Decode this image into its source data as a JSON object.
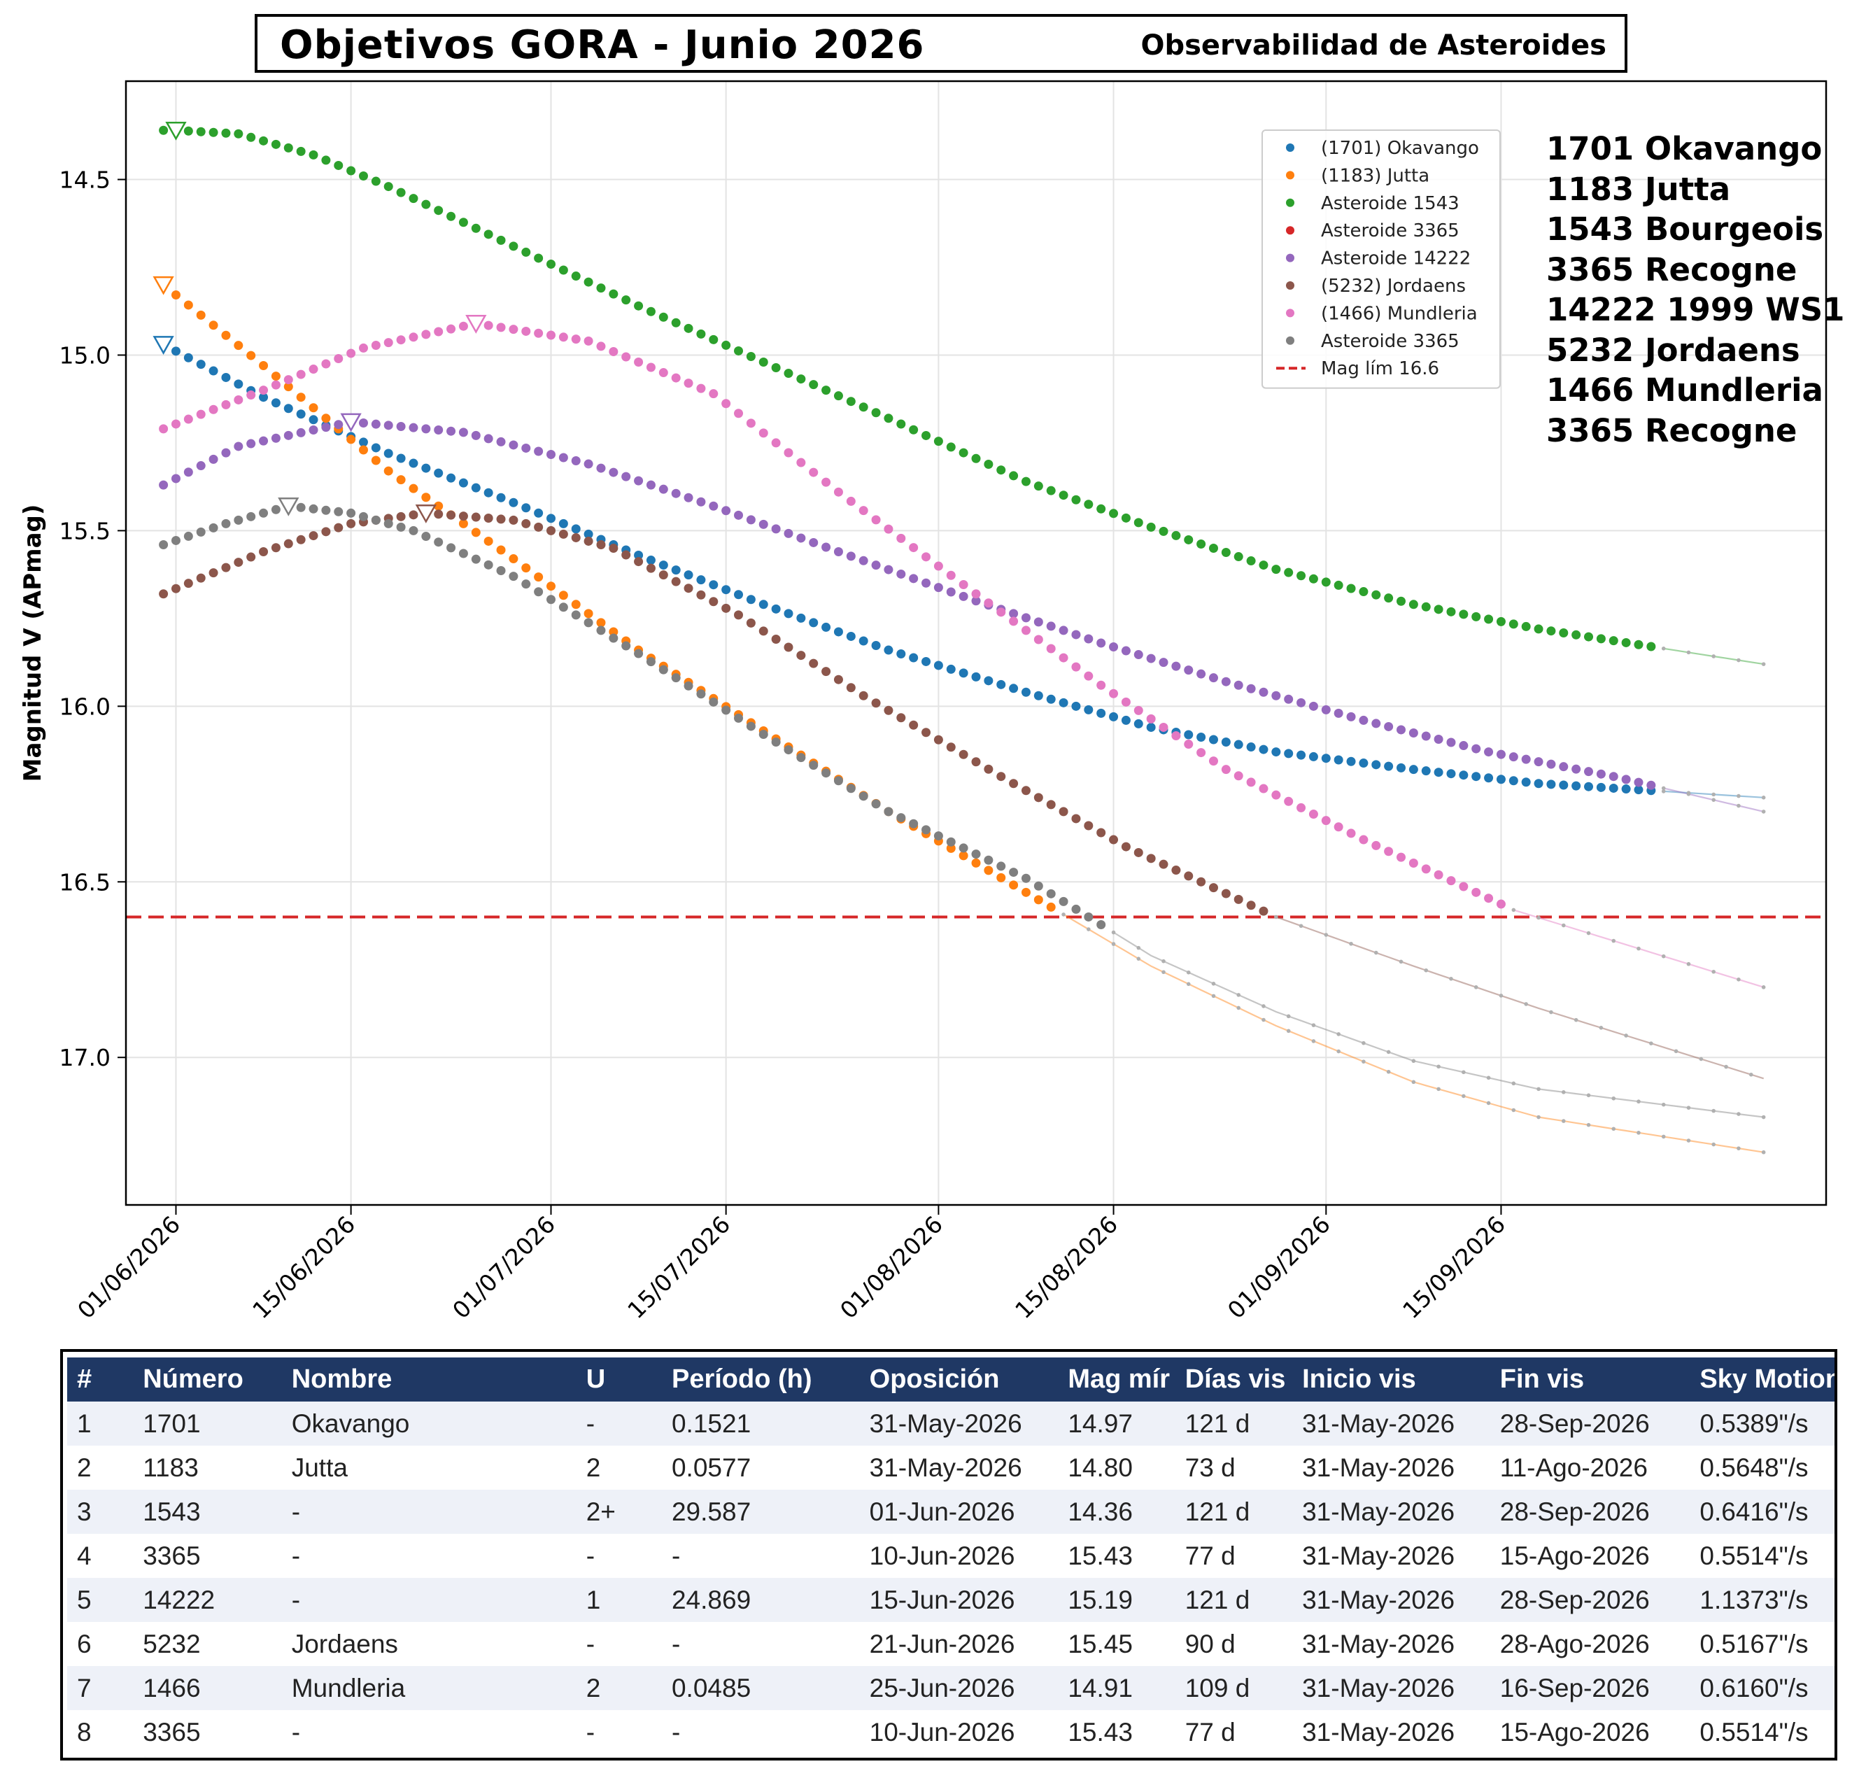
{
  "header": {
    "title": "Objetivos GORA - Junio 2026",
    "subtitle": "Observabilidad de Asteroides"
  },
  "side_list": [
    "1701 Okavango",
    "1183 Jutta",
    "1543 Bourgeois",
    "3365 Recogne",
    "14222 1999 WS1",
    "5232 Jordaens",
    "1466 Mundleria",
    "3365 Recogne"
  ],
  "chart_data": {
    "type": "scatter",
    "title": "",
    "xlabel": "",
    "ylabel": "Magnitud V (APmag)",
    "x_range": [
      "2026-05-28",
      "2026-10-11"
    ],
    "x_ticks": [
      "01/06/2026",
      "15/06/2026",
      "01/07/2026",
      "15/07/2026",
      "01/08/2026",
      "15/08/2026",
      "01/09/2026",
      "15/09/2026"
    ],
    "y_range": [
      14.22,
      17.42
    ],
    "y_inverted": true,
    "y_ticks": [
      "14.5",
      "15.0",
      "15.5",
      "16.0",
      "16.5",
      "17.0"
    ],
    "grid": true,
    "legend_position": "top-right",
    "limit_line": {
      "label": "Mag lím 16.6",
      "value": 16.6,
      "color": "#d62728"
    },
    "series": [
      {
        "name": "(1701) Okavango",
        "color": "#1f77b4",
        "points": [
          [
            "2026-05-31",
            14.97
          ],
          [
            "2026-06-08",
            15.12
          ],
          [
            "2026-06-18",
            15.28
          ],
          [
            "2026-06-28",
            15.42
          ],
          [
            "2026-07-08",
            15.57
          ],
          [
            "2026-07-18",
            15.71
          ],
          [
            "2026-07-28",
            15.84
          ],
          [
            "2026-08-08",
            15.96
          ],
          [
            "2026-08-18",
            16.06
          ],
          [
            "2026-08-28",
            16.13
          ],
          [
            "2026-09-08",
            16.18
          ],
          [
            "2026-09-18",
            16.22
          ],
          [
            "2026-10-06",
            16.26
          ]
        ],
        "opposition": [
          "2026-05-31",
          14.97
        ],
        "vis_end": "2026-09-28"
      },
      {
        "name": "(1183) Jutta",
        "color": "#ff7f0e",
        "points": [
          [
            "2026-05-31",
            14.8
          ],
          [
            "2026-06-08",
            15.03
          ],
          [
            "2026-06-18",
            15.33
          ],
          [
            "2026-06-28",
            15.58
          ],
          [
            "2026-07-08",
            15.84
          ],
          [
            "2026-07-18",
            16.07
          ],
          [
            "2026-07-28",
            16.3
          ],
          [
            "2026-08-08",
            16.53
          ],
          [
            "2026-08-18",
            16.74
          ],
          [
            "2026-08-28",
            16.91
          ],
          [
            "2026-09-08",
            17.07
          ],
          [
            "2026-09-18",
            17.17
          ],
          [
            "2026-10-06",
            17.27
          ]
        ],
        "opposition": [
          "2026-05-31",
          14.8
        ],
        "vis_end": "2026-08-11"
      },
      {
        "name": "Asteroide 1543",
        "color": "#2ca02c",
        "points": [
          [
            "2026-05-31",
            14.36
          ],
          [
            "2026-06-01",
            14.36
          ],
          [
            "2026-06-06",
            14.37
          ],
          [
            "2026-06-12",
            14.43
          ],
          [
            "2026-06-18",
            14.52
          ],
          [
            "2026-06-28",
            14.69
          ],
          [
            "2026-07-08",
            14.86
          ],
          [
            "2026-07-18",
            15.02
          ],
          [
            "2026-07-28",
            15.18
          ],
          [
            "2026-08-08",
            15.36
          ],
          [
            "2026-08-18",
            15.49
          ],
          [
            "2026-08-28",
            15.61
          ],
          [
            "2026-09-08",
            15.71
          ],
          [
            "2026-09-18",
            15.78
          ],
          [
            "2026-10-06",
            15.88
          ]
        ],
        "opposition": [
          "2026-06-01",
          14.36
        ],
        "vis_end": "2026-09-28"
      },
      {
        "name": "Asteroide 3365",
        "color": "#d62728",
        "points": []
      },
      {
        "name": "Asteroide 14222",
        "color": "#9467bd",
        "points": [
          [
            "2026-05-31",
            15.37
          ],
          [
            "2026-06-06",
            15.26
          ],
          [
            "2026-06-15",
            15.19
          ],
          [
            "2026-06-24",
            15.22
          ],
          [
            "2026-07-04",
            15.31
          ],
          [
            "2026-07-14",
            15.43
          ],
          [
            "2026-07-24",
            15.56
          ],
          [
            "2026-08-04",
            15.7
          ],
          [
            "2026-08-14",
            15.82
          ],
          [
            "2026-08-24",
            15.93
          ],
          [
            "2026-09-04",
            16.04
          ],
          [
            "2026-09-14",
            16.13
          ],
          [
            "2026-09-24",
            16.2
          ],
          [
            "2026-10-06",
            16.3
          ]
        ],
        "opposition": [
          "2026-06-15",
          15.19
        ],
        "vis_end": "2026-09-28"
      },
      {
        "name": "(5232) Jordaens",
        "color": "#8c564b",
        "points": [
          [
            "2026-05-31",
            15.68
          ],
          [
            "2026-06-08",
            15.56
          ],
          [
            "2026-06-15",
            15.48
          ],
          [
            "2026-06-21",
            15.45
          ],
          [
            "2026-06-28",
            15.47
          ],
          [
            "2026-07-06",
            15.55
          ],
          [
            "2026-07-16",
            15.74
          ],
          [
            "2026-07-26",
            15.97
          ],
          [
            "2026-08-06",
            16.2
          ],
          [
            "2026-08-16",
            16.4
          ],
          [
            "2026-08-28",
            16.6
          ],
          [
            "2026-09-08",
            16.74
          ],
          [
            "2026-09-18",
            16.86
          ],
          [
            "2026-10-06",
            17.06
          ]
        ],
        "opposition": [
          "2026-06-21",
          15.45
        ],
        "vis_end": "2026-08-28"
      },
      {
        "name": "(1466) Mundleria",
        "color": "#e377c2",
        "points": [
          [
            "2026-05-31",
            15.21
          ],
          [
            "2026-06-08",
            15.1
          ],
          [
            "2026-06-16",
            14.98
          ],
          [
            "2026-06-25",
            14.91
          ],
          [
            "2026-07-04",
            14.96
          ],
          [
            "2026-07-14",
            15.11
          ],
          [
            "2026-07-24",
            15.39
          ],
          [
            "2026-08-04",
            15.68
          ],
          [
            "2026-08-14",
            15.94
          ],
          [
            "2026-08-24",
            16.18
          ],
          [
            "2026-09-04",
            16.38
          ],
          [
            "2026-09-16",
            16.58
          ],
          [
            "2026-10-06",
            16.8
          ]
        ],
        "opposition": [
          "2026-06-25",
          14.91
        ],
        "vis_end": "2026-09-16"
      },
      {
        "name": "Asteroide 3365",
        "color": "#7f7f7f",
        "points": [
          [
            "2026-05-31",
            15.54
          ],
          [
            "2026-06-05",
            15.48
          ],
          [
            "2026-06-10",
            15.43
          ],
          [
            "2026-06-15",
            15.45
          ],
          [
            "2026-06-20",
            15.5
          ],
          [
            "2026-06-28",
            15.63
          ],
          [
            "2026-07-08",
            15.85
          ],
          [
            "2026-07-18",
            16.08
          ],
          [
            "2026-07-28",
            16.3
          ],
          [
            "2026-08-08",
            16.49
          ],
          [
            "2026-08-18",
            16.71
          ],
          [
            "2026-08-28",
            16.87
          ],
          [
            "2026-09-08",
            17.01
          ],
          [
            "2026-09-18",
            17.09
          ],
          [
            "2026-10-06",
            17.17
          ]
        ],
        "opposition": [
          "2026-06-10",
          15.43
        ],
        "vis_end": "2026-08-15"
      }
    ]
  },
  "table": {
    "headers": [
      "#",
      "Número",
      "Nombre",
      "U",
      "Período (h)",
      "Oposición",
      "Mag mír",
      "Días vis",
      "Inicio vis",
      "Fin vis",
      "Sky Motion"
    ],
    "rows": [
      [
        "1",
        "1701",
        "Okavango",
        "-",
        "0.1521",
        "31-May-2026",
        "14.97",
        "121 d",
        "31-May-2026",
        "28-Sep-2026",
        "0.5389\"/s"
      ],
      [
        "2",
        "1183",
        "Jutta",
        "2",
        "0.0577",
        "31-May-2026",
        "14.80",
        "73 d",
        "31-May-2026",
        "11-Ago-2026",
        "0.5648\"/s"
      ],
      [
        "3",
        "1543",
        "-",
        "2+",
        "29.587",
        "01-Jun-2026",
        "14.36",
        "121 d",
        "31-May-2026",
        "28-Sep-2026",
        "0.6416\"/s"
      ],
      [
        "4",
        "3365",
        "-",
        "-",
        "-",
        "10-Jun-2026",
        "15.43",
        "77 d",
        "31-May-2026",
        "15-Ago-2026",
        "0.5514\"/s"
      ],
      [
        "5",
        "14222",
        "-",
        "1",
        "24.869",
        "15-Jun-2026",
        "15.19",
        "121 d",
        "31-May-2026",
        "28-Sep-2026",
        "1.1373\"/s"
      ],
      [
        "6",
        "5232",
        "Jordaens",
        "-",
        "-",
        "21-Jun-2026",
        "15.45",
        "90 d",
        "31-May-2026",
        "28-Ago-2026",
        "0.5167\"/s"
      ],
      [
        "7",
        "1466",
        "Mundleria",
        "2",
        "0.0485",
        "25-Jun-2026",
        "14.91",
        "109 d",
        "31-May-2026",
        "16-Sep-2026",
        "0.6160\"/s"
      ],
      [
        "8",
        "3365",
        "-",
        "-",
        "-",
        "10-Jun-2026",
        "15.43",
        "77 d",
        "31-May-2026",
        "15-Ago-2026",
        "0.5514\"/s"
      ]
    ]
  }
}
